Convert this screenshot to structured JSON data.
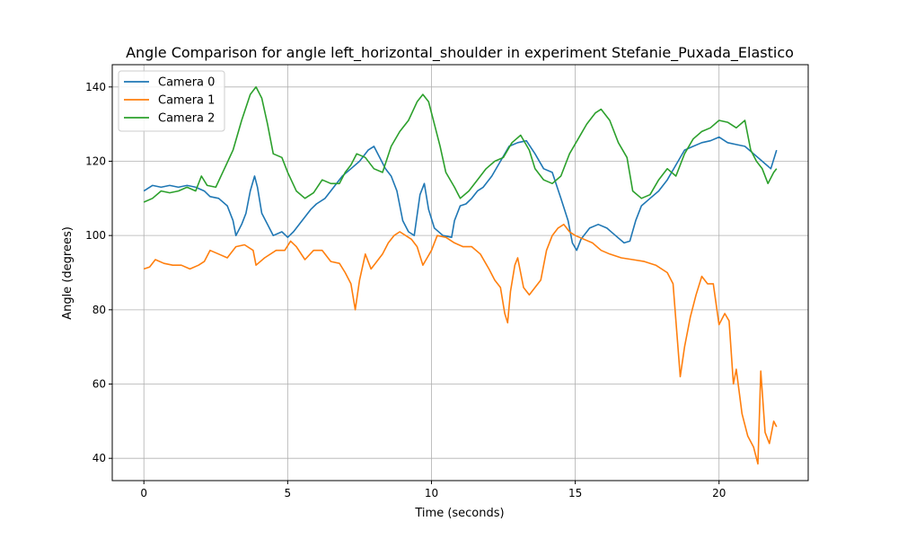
{
  "chart_data": {
    "type": "line",
    "title": "Angle Comparison for angle left_horizontal_shoulder in experiment Stefanie_Puxada_Elastico",
    "xlabel": "Time (seconds)",
    "ylabel": "Angle (degrees)",
    "xlim": [
      -1.1,
      23.1
    ],
    "ylim": [
      34,
      146
    ],
    "xticks": [
      0,
      5,
      10,
      15,
      20
    ],
    "yticks": [
      40,
      60,
      80,
      100,
      120,
      140
    ],
    "grid": true,
    "legend": "upper-left",
    "series": [
      {
        "name": "Camera 0",
        "color": "#1f77b4",
        "points": [
          [
            0,
            112
          ],
          [
            0.3,
            113.5
          ],
          [
            0.6,
            113
          ],
          [
            0.9,
            113.5
          ],
          [
            1.2,
            113
          ],
          [
            1.5,
            113.5
          ],
          [
            1.8,
            113
          ],
          [
            2.1,
            112
          ],
          [
            2.3,
            110.5
          ],
          [
            2.6,
            110
          ],
          [
            2.9,
            108
          ],
          [
            3.1,
            104
          ],
          [
            3.2,
            100
          ],
          [
            3.4,
            103
          ],
          [
            3.55,
            106
          ],
          [
            3.7,
            112
          ],
          [
            3.85,
            116
          ],
          [
            3.95,
            113
          ],
          [
            4.1,
            106
          ],
          [
            4.3,
            103
          ],
          [
            4.5,
            100
          ],
          [
            4.8,
            101
          ],
          [
            5.0,
            99.5
          ],
          [
            5.2,
            101
          ],
          [
            5.4,
            103
          ],
          [
            5.6,
            105
          ],
          [
            5.8,
            107
          ],
          [
            6.0,
            108.5
          ],
          [
            6.3,
            110
          ],
          [
            6.6,
            113
          ],
          [
            6.9,
            116
          ],
          [
            7.2,
            118
          ],
          [
            7.5,
            120
          ],
          [
            7.8,
            123
          ],
          [
            8.0,
            124
          ],
          [
            8.2,
            121
          ],
          [
            8.4,
            118
          ],
          [
            8.6,
            116
          ],
          [
            8.8,
            112
          ],
          [
            9.0,
            104
          ],
          [
            9.2,
            101
          ],
          [
            9.4,
            100
          ],
          [
            9.6,
            111
          ],
          [
            9.75,
            114
          ],
          [
            9.9,
            107
          ],
          [
            10.1,
            102
          ],
          [
            10.4,
            100
          ],
          [
            10.7,
            99.5
          ],
          [
            10.8,
            104
          ],
          [
            11.0,
            108
          ],
          [
            11.2,
            108.5
          ],
          [
            11.4,
            110
          ],
          [
            11.6,
            112
          ],
          [
            11.8,
            113
          ],
          [
            12.1,
            116
          ],
          [
            12.4,
            120
          ],
          [
            12.7,
            124
          ],
          [
            13.0,
            125
          ],
          [
            13.3,
            125.5
          ],
          [
            13.6,
            122
          ],
          [
            13.9,
            118
          ],
          [
            14.2,
            117
          ],
          [
            14.5,
            110
          ],
          [
            14.75,
            104
          ],
          [
            14.9,
            98
          ],
          [
            15.05,
            96
          ],
          [
            15.2,
            99
          ],
          [
            15.5,
            102
          ],
          [
            15.8,
            103
          ],
          [
            16.1,
            102
          ],
          [
            16.4,
            100
          ],
          [
            16.7,
            98
          ],
          [
            16.9,
            98.5
          ],
          [
            17.1,
            104
          ],
          [
            17.3,
            108
          ],
          [
            17.6,
            110
          ],
          [
            17.9,
            112
          ],
          [
            18.2,
            115
          ],
          [
            18.5,
            119
          ],
          [
            18.8,
            123
          ],
          [
            19.1,
            124
          ],
          [
            19.4,
            125
          ],
          [
            19.7,
            125.5
          ],
          [
            20.0,
            126.5
          ],
          [
            20.3,
            125
          ],
          [
            20.6,
            124.5
          ],
          [
            20.9,
            124
          ],
          [
            21.2,
            122
          ],
          [
            21.5,
            120
          ],
          [
            21.8,
            118
          ],
          [
            22.0,
            123
          ]
        ]
      },
      {
        "name": "Camera 1",
        "color": "#ff7f0e",
        "points": [
          [
            0,
            91
          ],
          [
            0.2,
            91.5
          ],
          [
            0.4,
            93.5
          ],
          [
            0.7,
            92.5
          ],
          [
            1.0,
            92
          ],
          [
            1.3,
            92
          ],
          [
            1.6,
            91
          ],
          [
            1.9,
            92
          ],
          [
            2.1,
            93
          ],
          [
            2.3,
            96
          ],
          [
            2.6,
            95
          ],
          [
            2.9,
            94
          ],
          [
            3.2,
            97
          ],
          [
            3.5,
            97.5
          ],
          [
            3.8,
            96
          ],
          [
            3.9,
            92
          ],
          [
            4.2,
            94
          ],
          [
            4.6,
            96
          ],
          [
            4.9,
            96
          ],
          [
            5.1,
            98.5
          ],
          [
            5.3,
            97
          ],
          [
            5.6,
            93.5
          ],
          [
            5.9,
            96
          ],
          [
            6.2,
            96
          ],
          [
            6.5,
            93
          ],
          [
            6.8,
            92.5
          ],
          [
            7.0,
            90
          ],
          [
            7.2,
            87
          ],
          [
            7.35,
            80
          ],
          [
            7.5,
            88
          ],
          [
            7.7,
            95
          ],
          [
            7.9,
            91
          ],
          [
            8.1,
            93
          ],
          [
            8.3,
            95
          ],
          [
            8.5,
            98
          ],
          [
            8.7,
            100
          ],
          [
            8.9,
            101
          ],
          [
            9.1,
            100
          ],
          [
            9.3,
            99
          ],
          [
            9.5,
            97
          ],
          [
            9.7,
            92
          ],
          [
            9.85,
            94
          ],
          [
            10.0,
            96
          ],
          [
            10.2,
            100
          ],
          [
            10.5,
            99.5
          ],
          [
            10.8,
            98
          ],
          [
            11.1,
            97
          ],
          [
            11.4,
            97
          ],
          [
            11.7,
            95
          ],
          [
            12.0,
            91
          ],
          [
            12.2,
            88
          ],
          [
            12.4,
            86
          ],
          [
            12.55,
            79
          ],
          [
            12.65,
            76.5
          ],
          [
            12.75,
            85
          ],
          [
            12.9,
            92
          ],
          [
            13.0,
            94
          ],
          [
            13.2,
            86
          ],
          [
            13.4,
            84
          ],
          [
            13.6,
            86
          ],
          [
            13.8,
            88
          ],
          [
            14.0,
            96
          ],
          [
            14.2,
            100
          ],
          [
            14.4,
            102
          ],
          [
            14.6,
            103
          ],
          [
            14.8,
            101
          ],
          [
            15.0,
            100
          ],
          [
            15.3,
            99
          ],
          [
            15.6,
            98
          ],
          [
            15.9,
            96
          ],
          [
            16.2,
            95
          ],
          [
            16.6,
            94
          ],
          [
            17.0,
            93.5
          ],
          [
            17.4,
            93
          ],
          [
            17.8,
            92
          ],
          [
            18.2,
            90
          ],
          [
            18.4,
            87
          ],
          [
            18.65,
            62
          ],
          [
            18.8,
            70
          ],
          [
            19.0,
            78
          ],
          [
            19.2,
            84
          ],
          [
            19.4,
            89
          ],
          [
            19.6,
            87
          ],
          [
            19.8,
            87
          ],
          [
            20.0,
            76
          ],
          [
            20.2,
            79
          ],
          [
            20.35,
            77
          ],
          [
            20.5,
            60
          ],
          [
            20.6,
            64
          ],
          [
            20.8,
            52
          ],
          [
            21.0,
            46
          ],
          [
            21.2,
            43
          ],
          [
            21.35,
            38.5
          ],
          [
            21.45,
            63.5
          ],
          [
            21.6,
            47
          ],
          [
            21.75,
            44
          ],
          [
            21.9,
            50
          ],
          [
            22.0,
            48.5
          ]
        ]
      },
      {
        "name": "Camera 2",
        "color": "#2ca02c",
        "points": [
          [
            0,
            109
          ],
          [
            0.3,
            110
          ],
          [
            0.6,
            112
          ],
          [
            0.9,
            111.5
          ],
          [
            1.2,
            112
          ],
          [
            1.5,
            113
          ],
          [
            1.8,
            112
          ],
          [
            2.0,
            116
          ],
          [
            2.2,
            113.5
          ],
          [
            2.5,
            113
          ],
          [
            2.8,
            118
          ],
          [
            3.1,
            123
          ],
          [
            3.4,
            131
          ],
          [
            3.7,
            138
          ],
          [
            3.9,
            140
          ],
          [
            4.1,
            137
          ],
          [
            4.3,
            130
          ],
          [
            4.5,
            122
          ],
          [
            4.8,
            121
          ],
          [
            5.0,
            117
          ],
          [
            5.3,
            112
          ],
          [
            5.6,
            110
          ],
          [
            5.9,
            111.5
          ],
          [
            6.2,
            115
          ],
          [
            6.5,
            114
          ],
          [
            6.8,
            114
          ],
          [
            7.0,
            117
          ],
          [
            7.2,
            119
          ],
          [
            7.4,
            122
          ],
          [
            7.7,
            121
          ],
          [
            8.0,
            118
          ],
          [
            8.3,
            117
          ],
          [
            8.6,
            124
          ],
          [
            8.9,
            128
          ],
          [
            9.2,
            131
          ],
          [
            9.5,
            136
          ],
          [
            9.7,
            138
          ],
          [
            9.9,
            136
          ],
          [
            10.1,
            130
          ],
          [
            10.3,
            124
          ],
          [
            10.5,
            117
          ],
          [
            10.8,
            113
          ],
          [
            11.0,
            110
          ],
          [
            11.3,
            112
          ],
          [
            11.6,
            115
          ],
          [
            11.9,
            118
          ],
          [
            12.2,
            120
          ],
          [
            12.5,
            121
          ],
          [
            12.8,
            125
          ],
          [
            13.1,
            127
          ],
          [
            13.4,
            123
          ],
          [
            13.6,
            118
          ],
          [
            13.9,
            115
          ],
          [
            14.2,
            114
          ],
          [
            14.5,
            116
          ],
          [
            14.8,
            122
          ],
          [
            15.1,
            126
          ],
          [
            15.4,
            130
          ],
          [
            15.7,
            133
          ],
          [
            15.9,
            134
          ],
          [
            16.2,
            131
          ],
          [
            16.5,
            125
          ],
          [
            16.8,
            121
          ],
          [
            17.0,
            112
          ],
          [
            17.3,
            110
          ],
          [
            17.6,
            111
          ],
          [
            17.9,
            115
          ],
          [
            18.2,
            118
          ],
          [
            18.5,
            116
          ],
          [
            18.8,
            122
          ],
          [
            19.1,
            126
          ],
          [
            19.4,
            128
          ],
          [
            19.7,
            129
          ],
          [
            20.0,
            131
          ],
          [
            20.3,
            130.5
          ],
          [
            20.6,
            129
          ],
          [
            20.9,
            131
          ],
          [
            21.1,
            123
          ],
          [
            21.3,
            120
          ],
          [
            21.5,
            118
          ],
          [
            21.7,
            114
          ],
          [
            21.9,
            117
          ],
          [
            22.0,
            118
          ]
        ]
      }
    ]
  }
}
